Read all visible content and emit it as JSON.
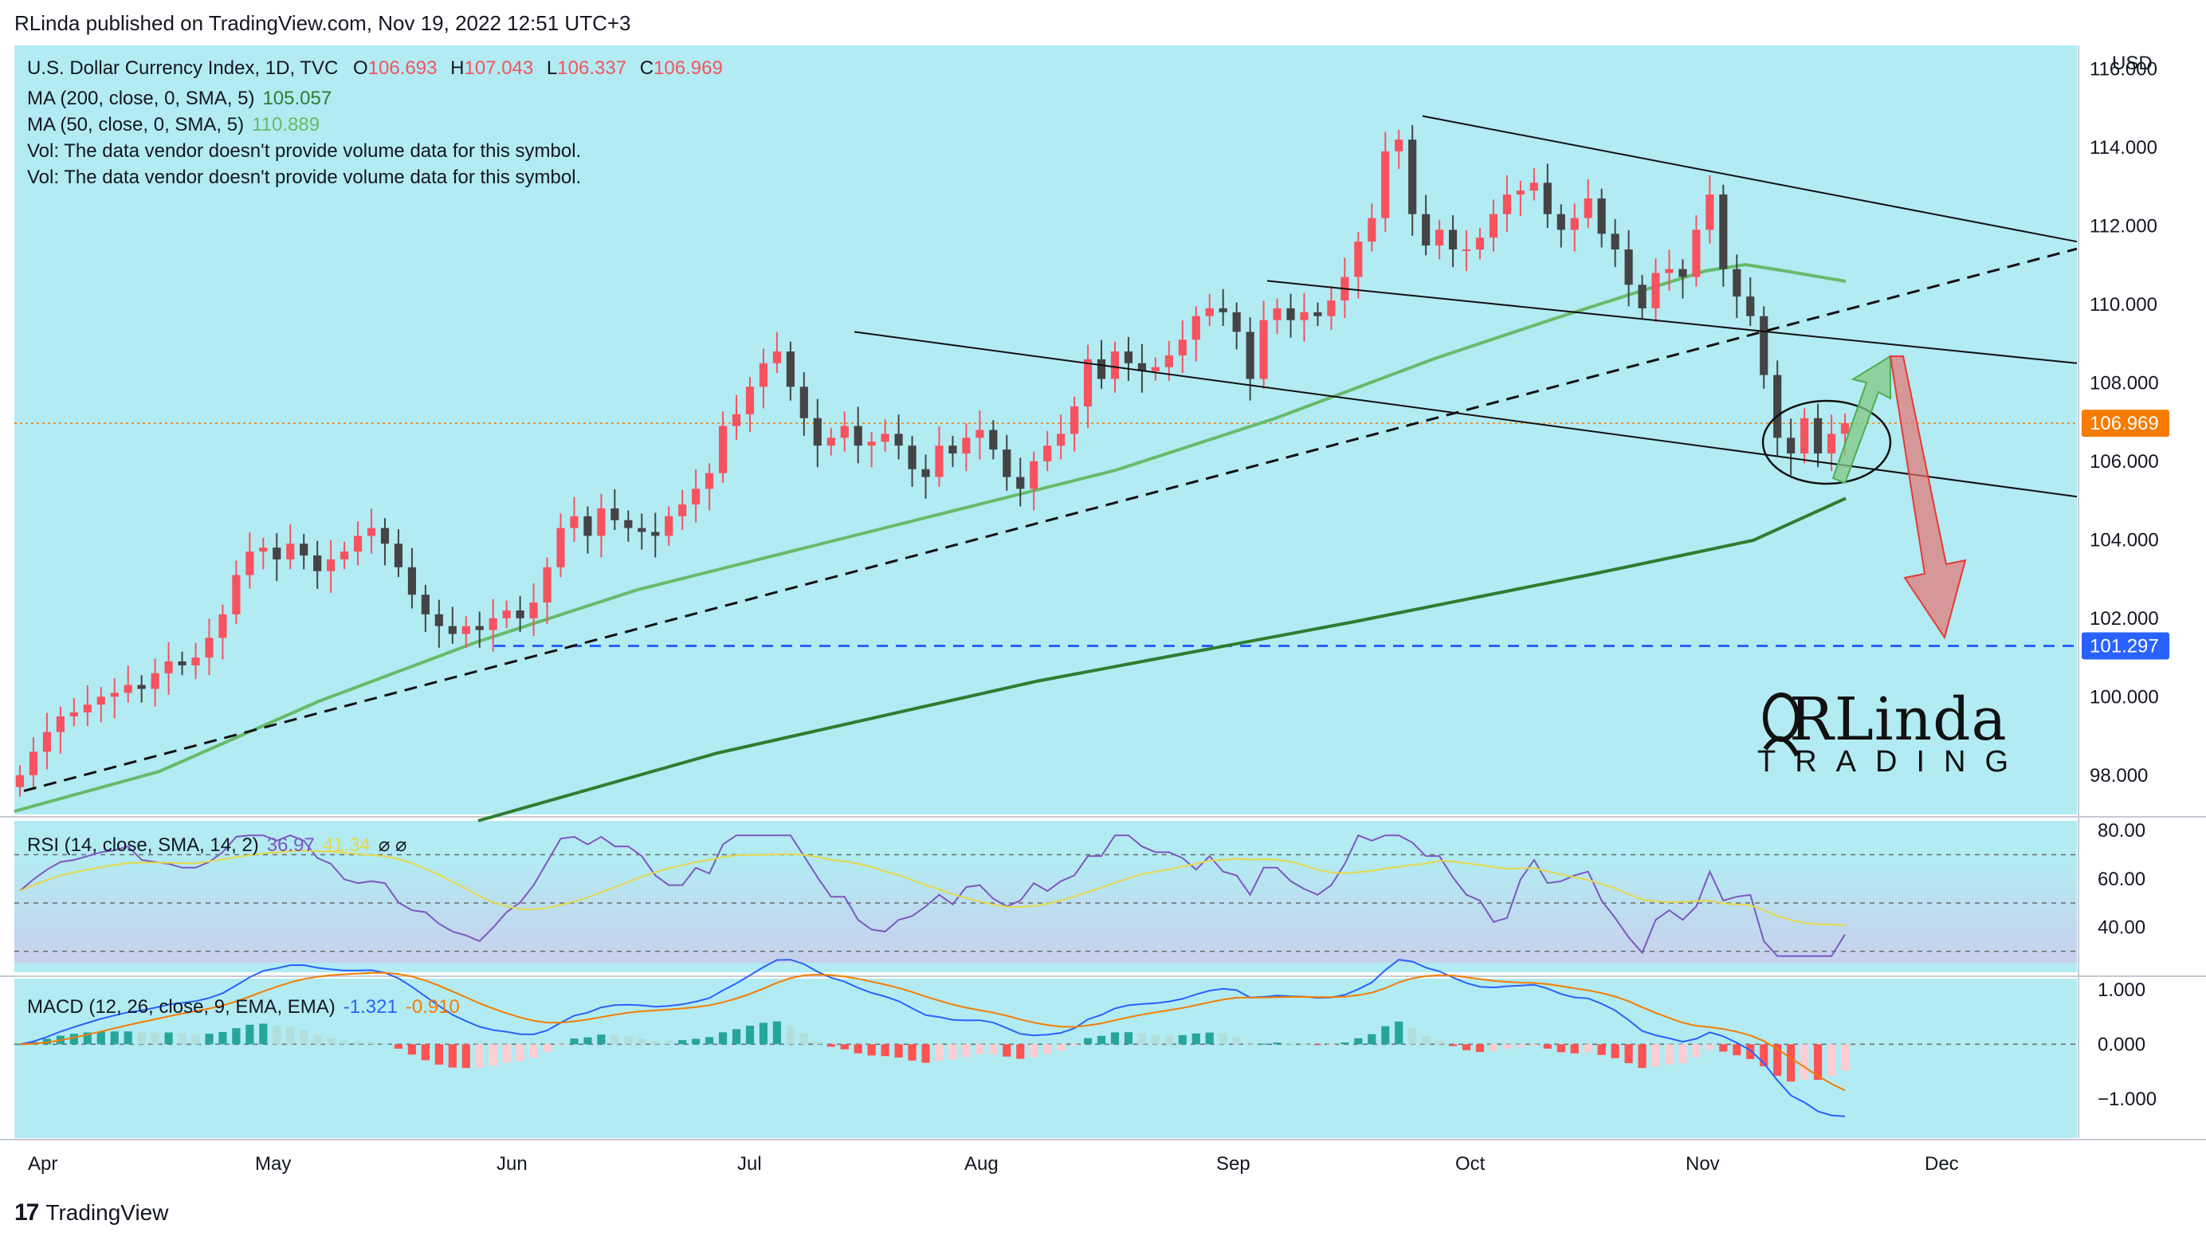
{
  "header": {
    "published": "RLinda published on TradingView.com, Nov 19, 2022 12:51 UTC+3"
  },
  "legend": {
    "symbol": "U.S. Dollar Currency Index, 1D, TVC",
    "ohlc": {
      "o_label": "O",
      "o": "106.693",
      "h_label": "H",
      "h": "107.043",
      "l_label": "L",
      "l": "106.337",
      "c_label": "C",
      "c": "106.969"
    },
    "ma200_label": "MA (200, close, 0, SMA, 5)",
    "ma200_value": "105.057",
    "ma50_label": "MA (50, close, 0, SMA, 5)",
    "ma50_value": "110.889",
    "vol_note_1": "Vol: The data vendor doesn't provide volume data for this symbol.",
    "vol_note_2": "Vol: The data vendor doesn't provide volume data for this symbol.",
    "rsi_label": "RSI (14, close, SMA, 14, 2)",
    "rsi_value": "36.97",
    "rsi_ma_value": "41.34",
    "rsi_extra": "⌀ ⌀",
    "macd_label": "MACD (12, 26, close, 9, EMA, EMA)",
    "macd_value": "-1.321",
    "signal_value": "-0.910"
  },
  "colors": {
    "up": "#f7525f",
    "down": "#444444",
    "ma200": "#2e7d32",
    "ma50": "#66bb6a",
    "rsi": "#7e57c2",
    "rsi_ma": "#e6d84a",
    "macd": "#2962ff",
    "signal": "#f57c00",
    "accent": "#f57c00",
    "support": "#2962ff",
    "bg_main": "#b2ebf2"
  },
  "footer": {
    "brand": "TradingView"
  },
  "watermark": {
    "name": "RLinda",
    "sub": "TRADING"
  },
  "chart_data": [
    {
      "type": "candlestick",
      "title": "U.S. Dollar Currency Index, 1D",
      "currency": "USD",
      "x_ticks": [
        "Apr",
        "May",
        "Jun",
        "Jul",
        "Aug",
        "Sep",
        "Oct",
        "Nov",
        "Dec"
      ],
      "ylim": [
        97.0,
        116.6
      ],
      "y_ticks": [
        "98.000",
        "100.000",
        "102.000",
        "104.000",
        "106.000",
        "108.000",
        "110.000",
        "112.000",
        "114.000",
        "116.000"
      ],
      "price_now": "106.969",
      "support_level": "101.297",
      "candle_closes": [
        98.0,
        98.6,
        99.1,
        99.5,
        99.6,
        99.8,
        100.0,
        100.1,
        100.3,
        100.2,
        100.6,
        100.9,
        100.8,
        101.0,
        101.5,
        102.1,
        103.1,
        103.7,
        103.8,
        103.5,
        103.9,
        103.6,
        103.2,
        103.5,
        103.7,
        104.1,
        104.3,
        103.9,
        103.3,
        102.6,
        102.1,
        101.8,
        101.6,
        101.8,
        101.7,
        102.0,
        102.2,
        102.0,
        102.4,
        103.3,
        104.3,
        104.6,
        104.1,
        104.8,
        104.5,
        104.3,
        104.2,
        104.1,
        104.6,
        104.9,
        105.3,
        105.7,
        106.9,
        107.2,
        107.9,
        108.5,
        108.8,
        107.9,
        107.1,
        106.4,
        106.6,
        106.9,
        106.4,
        106.5,
        106.7,
        106.4,
        105.8,
        105.6,
        106.4,
        106.2,
        106.6,
        106.8,
        106.3,
        105.6,
        105.3,
        106.0,
        106.4,
        106.7,
        107.4,
        108.6,
        108.1,
        108.8,
        108.5,
        108.3,
        108.4,
        108.7,
        109.1,
        109.7,
        109.9,
        109.8,
        109.3,
        108.1,
        109.6,
        109.9,
        109.6,
        109.8,
        109.7,
        110.1,
        110.7,
        111.6,
        112.2,
        113.9,
        114.2,
        112.3,
        111.5,
        111.9,
        111.4,
        111.4,
        111.7,
        112.3,
        112.8,
        112.9,
        113.1,
        112.3,
        111.9,
        112.2,
        112.7,
        111.8,
        111.4,
        110.5,
        109.9,
        110.8,
        110.9,
        110.7,
        111.9,
        112.8,
        110.9,
        110.2,
        109.7,
        108.2,
        106.6,
        106.2,
        107.1,
        106.2,
        106.7,
        106.97
      ],
      "support_line": {
        "from": {
          "x": "Apr",
          "y": 97.6
        },
        "through": {
          "x": "Aug",
          "y": 104.6
        }
      },
      "channel_top": [
        {
          "x": "Sep",
          "y": 114.8
        },
        {
          "x": "Dec",
          "y": 111.6
        }
      ],
      "channel_mid": [
        {
          "x": "Sep",
          "y": 110.6
        },
        {
          "x": "Dec",
          "y": 108.5
        }
      ],
      "channel_low": [
        {
          "x": "Jul",
          "y": 109.3
        },
        {
          "x": "Dec",
          "y": 105.1
        }
      ],
      "ma200_last": 105.057,
      "ma50_last": 110.889
    },
    {
      "type": "line",
      "title": "RSI (14, close, SMA, 14, 2)",
      "ylim": [
        23,
        84
      ],
      "y_ticks": [
        "80.00",
        "60.00",
        "40.00"
      ],
      "levels": [
        70,
        30
      ]
    },
    {
      "type": "bar",
      "title": "MACD (12, 26, close, 9, EMA, EMA)",
      "ylim": [
        -1.6,
        1.1
      ],
      "y_ticks": [
        "1.000",
        "0.000",
        "−1.000"
      ],
      "macd_last": -1.321,
      "signal_last": -0.91
    }
  ]
}
